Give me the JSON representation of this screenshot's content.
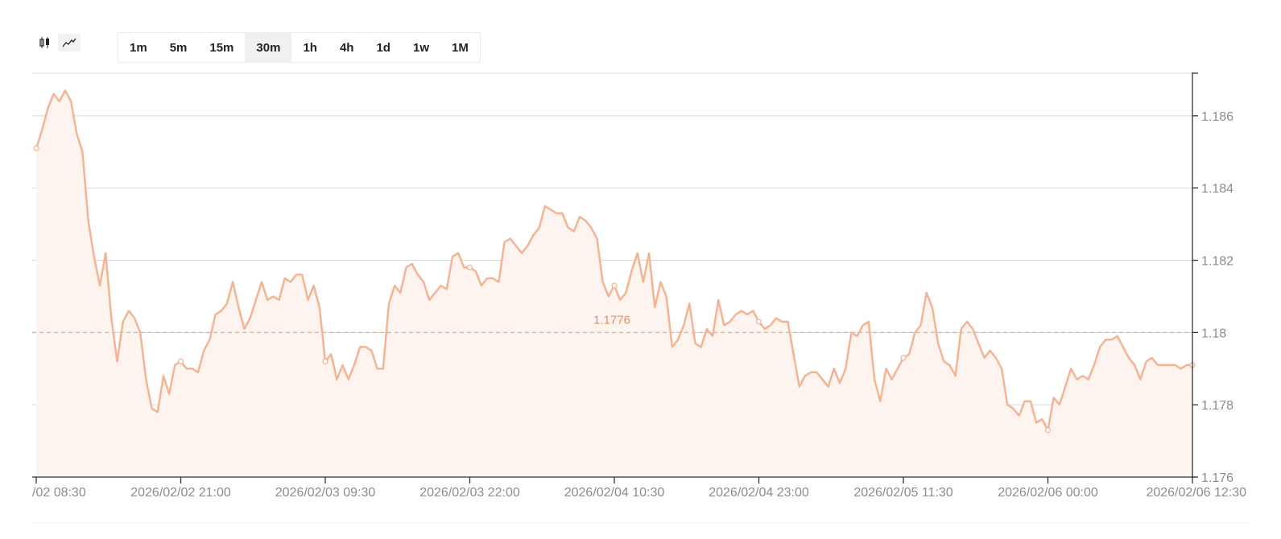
{
  "toolbar": {
    "chart_types": [
      {
        "icon": "candlestick-icon",
        "active": false
      },
      {
        "icon": "line-chart-icon",
        "active": true
      }
    ],
    "intervals": [
      "1m",
      "5m",
      "15m",
      "30m",
      "1h",
      "4h",
      "1d",
      "1w",
      "1M"
    ],
    "active_interval": "30m"
  },
  "colors": {
    "line": "#f4b493",
    "fill": "#fdf4ef",
    "ref_line": "#f0a882",
    "ref_label": "#ef8a5a",
    "grid": "#d9d9d9",
    "axis_text": "#8c8c8c"
  },
  "chart_data": {
    "type": "area",
    "title": "",
    "xlabel": "",
    "ylabel": "",
    "ylim": [
      1.176,
      1.1872
    ],
    "y_ticks": [
      "1.176",
      "1.178",
      "1.18",
      "1.182",
      "1.184",
      "1.186"
    ],
    "x_tick_labels": [
      "/02 08:30",
      "2026/02/02 21:00",
      "2026/02/03 09:30",
      "2026/02/03 22:00",
      "2026/02/04 10:30",
      "2026/02/04 23:00",
      "2026/02/05 11:30",
      "2026/02/06 00:00",
      "2026/02/06 12:30"
    ],
    "x_tick_index": [
      0,
      25,
      50,
      75,
      100,
      125,
      150,
      175,
      200
    ],
    "reference_line": {
      "value": 1.1776,
      "label": "1.1776",
      "y_position_value": 1.18
    },
    "series": [
      {
        "values": [
          1.1851,
          1.1856,
          1.1862,
          1.1866,
          1.1864,
          1.1867,
          1.1864,
          1.1855,
          1.185,
          1.1831,
          1.1821,
          1.1813,
          1.1822,
          1.1804,
          1.1792,
          1.1803,
          1.1806,
          1.1804,
          1.18,
          1.1787,
          1.1779,
          1.1778,
          1.1788,
          1.1783,
          1.1791,
          1.1792,
          1.179,
          1.179,
          1.1789,
          1.1795,
          1.1798,
          1.1805,
          1.1806,
          1.1808,
          1.1814,
          1.1807,
          1.1801,
          1.1804,
          1.1809,
          1.1814,
          1.1809,
          1.181,
          1.1809,
          1.1815,
          1.1814,
          1.1816,
          1.1816,
          1.1809,
          1.1813,
          1.1807,
          1.1792,
          1.1794,
          1.1787,
          1.1791,
          1.1787,
          1.1791,
          1.1796,
          1.1796,
          1.1795,
          1.179,
          1.179,
          1.1808,
          1.1813,
          1.1811,
          1.1818,
          1.1819,
          1.1816,
          1.1814,
          1.1809,
          1.1811,
          1.1813,
          1.1812,
          1.1821,
          1.1822,
          1.1818,
          1.1818,
          1.1817,
          1.1813,
          1.1815,
          1.1815,
          1.1814,
          1.1825,
          1.1826,
          1.1824,
          1.1822,
          1.1824,
          1.1827,
          1.1829,
          1.1835,
          1.1834,
          1.1833,
          1.1833,
          1.1829,
          1.1828,
          1.1832,
          1.1831,
          1.1829,
          1.1826,
          1.1814,
          1.181,
          1.1813,
          1.1809,
          1.1811,
          1.1817,
          1.1822,
          1.1814,
          1.1822,
          1.1807,
          1.1814,
          1.181,
          1.1796,
          1.1798,
          1.1802,
          1.1808,
          1.1797,
          1.1796,
          1.1801,
          1.1799,
          1.1809,
          1.1802,
          1.1803,
          1.1805,
          1.1806,
          1.1805,
          1.1806,
          1.1803,
          1.1801,
          1.1802,
          1.1804,
          1.1803,
          1.1803,
          1.1794,
          1.1785,
          1.1788,
          1.1789,
          1.1789,
          1.1787,
          1.1785,
          1.179,
          1.1786,
          1.179,
          1.18,
          1.1799,
          1.1802,
          1.1803,
          1.1787,
          1.1781,
          1.179,
          1.1787,
          1.179,
          1.1793,
          1.1794,
          1.18,
          1.1802,
          1.1811,
          1.1807,
          1.1797,
          1.1792,
          1.1791,
          1.1788,
          1.1801,
          1.1803,
          1.1801,
          1.1797,
          1.1793,
          1.1795,
          1.1793,
          1.179,
          1.178,
          1.1779,
          1.1777,
          1.1781,
          1.1781,
          1.1775,
          1.1776,
          1.1773,
          1.1782,
          1.178,
          1.1785,
          1.179,
          1.1787,
          1.1788,
          1.1787,
          1.1791,
          1.1796,
          1.1798,
          1.1798,
          1.1799,
          1.1796,
          1.1793,
          1.1791,
          1.1787,
          1.1792,
          1.1793,
          1.1791,
          1.1791,
          1.1791,
          1.1791,
          1.179,
          1.1791,
          1.1791
        ]
      }
    ],
    "marker_index": [
      0,
      25,
      50,
      75,
      100,
      125,
      150,
      175,
      200
    ],
    "grid": true,
    "legend": "none"
  }
}
